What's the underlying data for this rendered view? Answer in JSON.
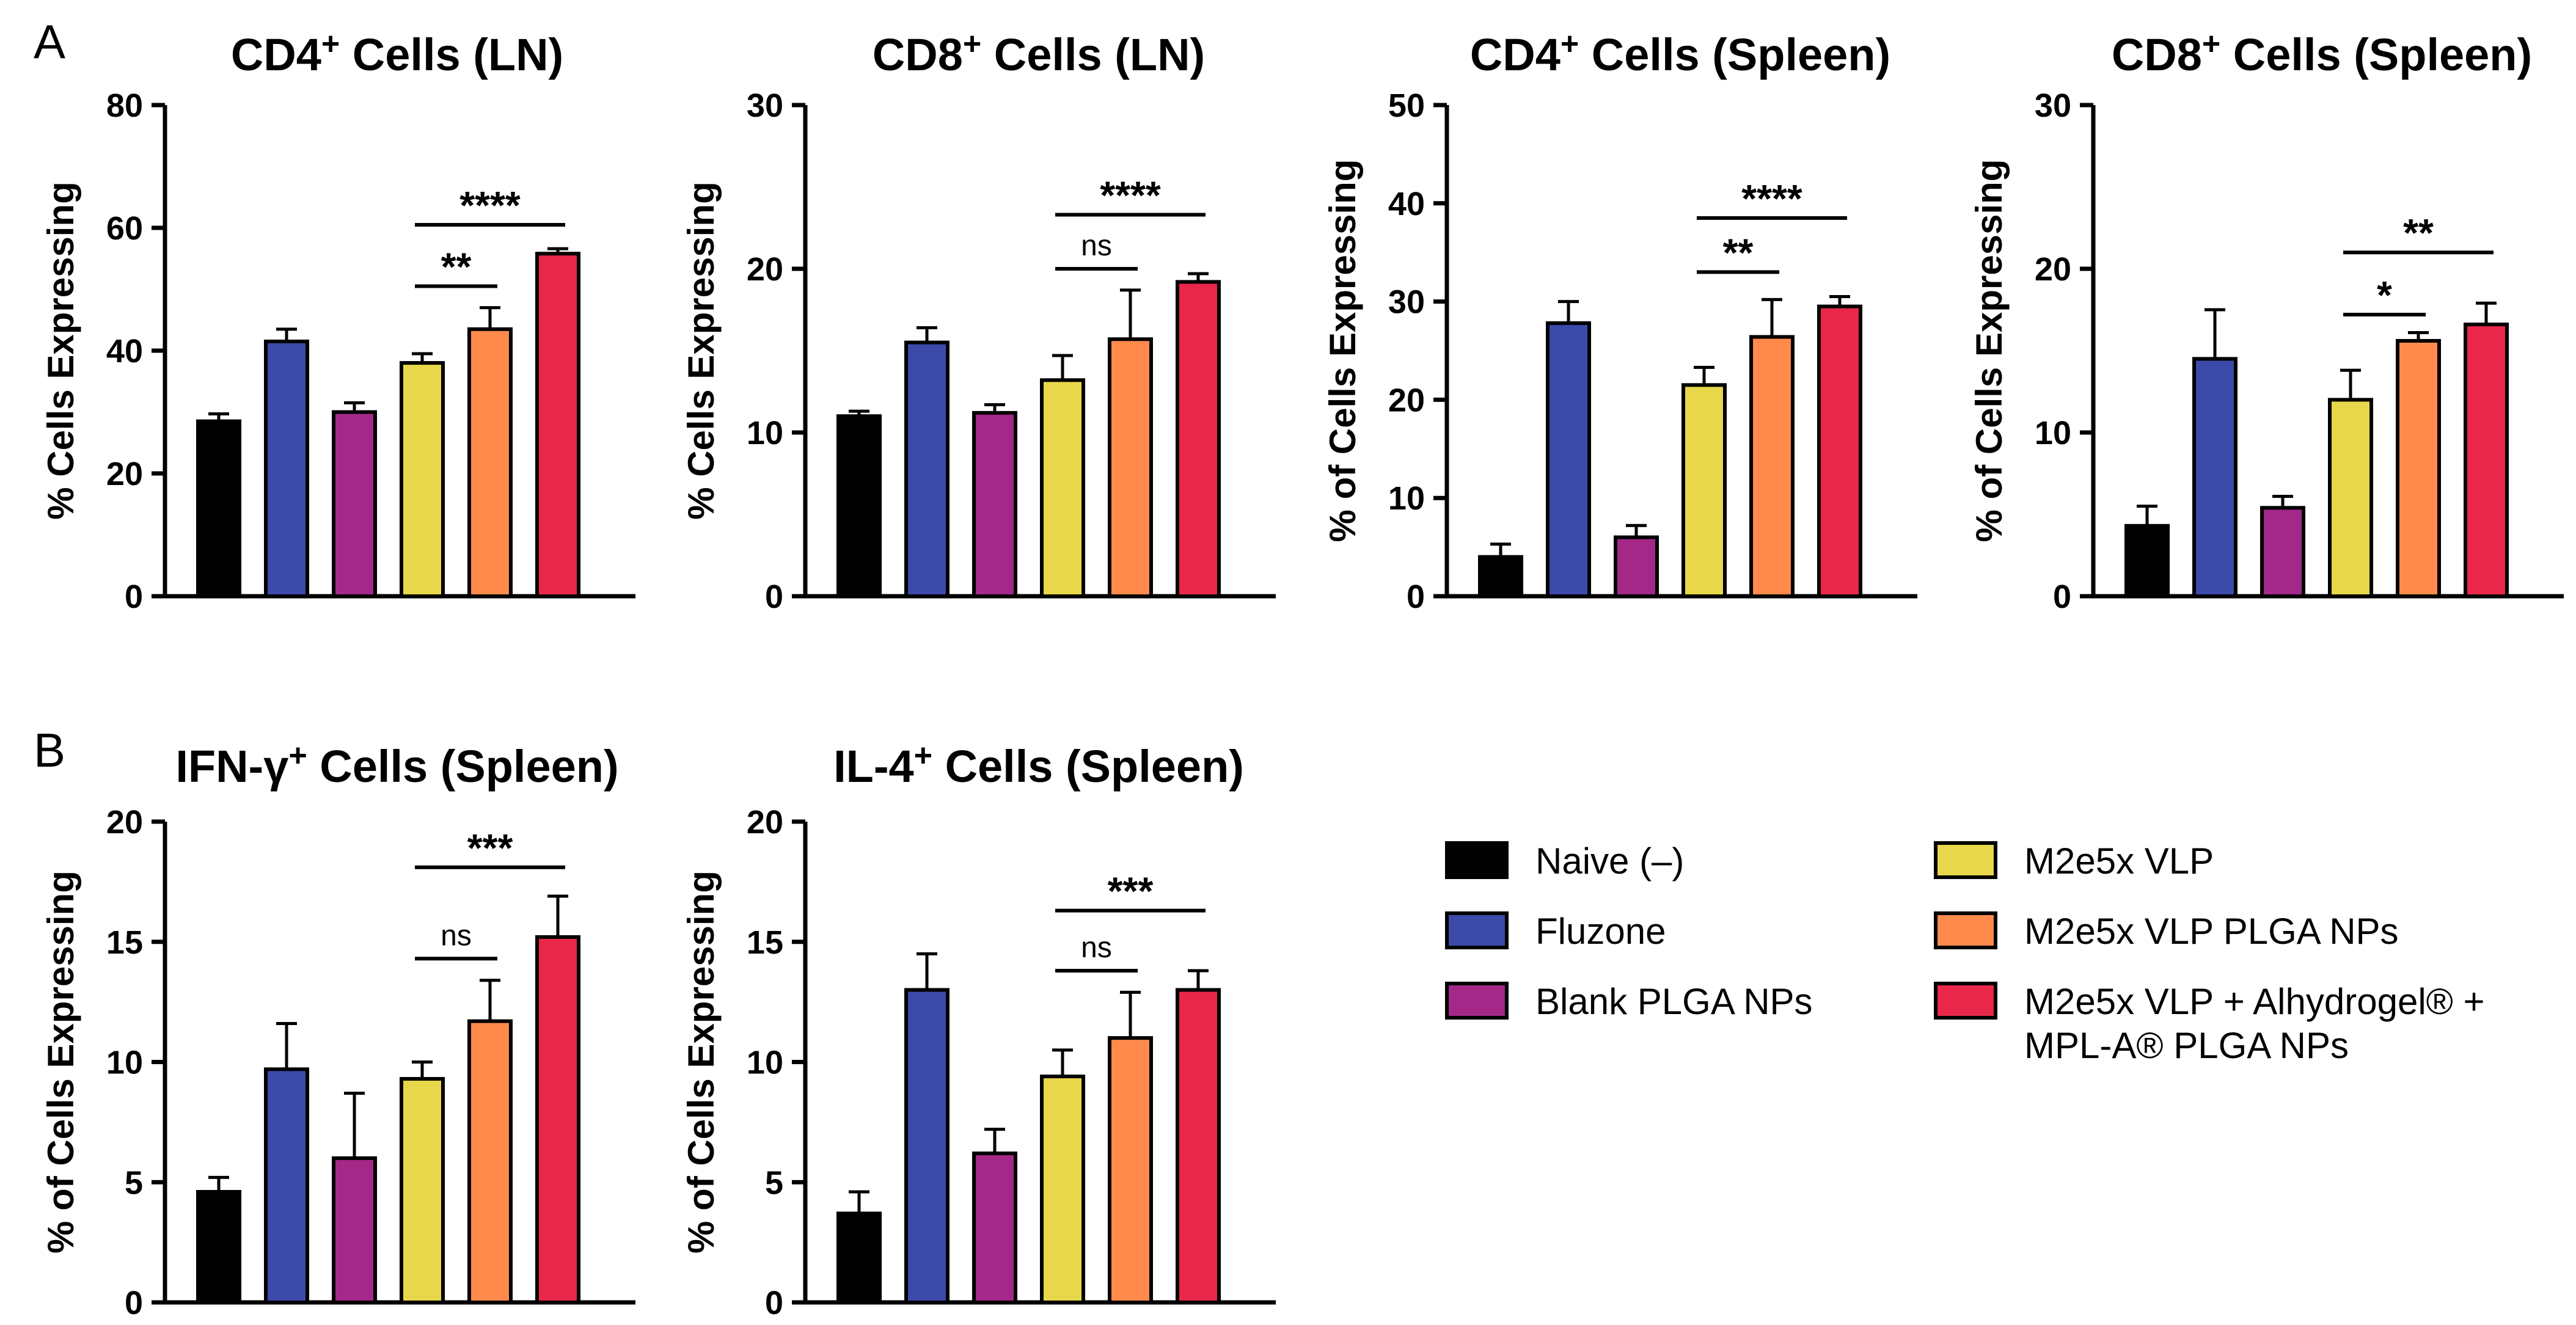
{
  "panel_labels": [
    "A",
    "B"
  ],
  "groups": [
    {
      "name": "Naive (–)",
      "color": "#000000"
    },
    {
      "name": "Fluzone",
      "color": "#3c4aaa"
    },
    {
      "name": "Blank PLGA NPs",
      "color": "#a32888"
    },
    {
      "name": "M2e5x VLP",
      "color": "#e8d74a"
    },
    {
      "name": "M2e5x VLP PLGA NPs",
      "color": "#ff8a4c"
    },
    {
      "name": "M2e5x VLP + Alhydrogel® + MPL-A® PLGA NPs",
      "color": "#e8274a"
    }
  ],
  "legend": [
    {
      "lines": [
        "Naive (–)"
      ]
    },
    {
      "lines": [
        "Fluzone"
      ]
    },
    {
      "lines": [
        "Blank PLGA NPs"
      ]
    },
    {
      "lines": [
        "M2e5x VLP"
      ]
    },
    {
      "lines": [
        "M2e5x VLP PLGA NPs"
      ]
    },
    {
      "lines": [
        "M2e5x VLP + Alhydrogel® +",
        "MPL-A® PLGA NPs"
      ]
    }
  ],
  "chart_data": [
    {
      "type": "bar",
      "panel": "A",
      "title": "CD4",
      "title_sup": "+",
      "title_rest": " Cells (LN)",
      "ylabel": "% Cells Expressing",
      "ylim": [
        0,
        80
      ],
      "yticks": [
        0,
        20,
        40,
        60,
        80
      ],
      "categories": [
        "Naive (–)",
        "Fluzone",
        "Blank PLGA NPs",
        "M2e5x VLP",
        "M2e5x VLP PLGA NPs",
        "M2e5x VLP + Alhydrogel® + MPL-A® PLGA NPs"
      ],
      "values": [
        28.5,
        41.5,
        30,
        38,
        43.5,
        55.8
      ],
      "errors": [
        1.2,
        2,
        1.5,
        1.5,
        3.5,
        0.8
      ],
      "significance": [
        {
          "from": 3,
          "to": 4,
          "label": "**",
          "y": 50.5
        },
        {
          "from": 3,
          "to": 5,
          "label": "****",
          "y": 60.5
        }
      ]
    },
    {
      "type": "bar",
      "panel": "A",
      "title": "CD8",
      "title_sup": "+",
      "title_rest": " Cells (LN)",
      "ylabel": "% Cells Expressing",
      "ylim": [
        0,
        30
      ],
      "yticks": [
        0,
        10,
        20,
        30
      ],
      "categories": [
        "Naive (–)",
        "Fluzone",
        "Blank PLGA NPs",
        "M2e5x VLP",
        "M2e5x VLP PLGA NPs",
        "M2e5x VLP + Alhydrogel® + MPL-A® PLGA NPs"
      ],
      "values": [
        11,
        15.5,
        11.2,
        13.2,
        15.7,
        19.2
      ],
      "errors": [
        0.3,
        0.9,
        0.5,
        1.5,
        3,
        0.5
      ],
      "significance": [
        {
          "from": 3,
          "to": 4,
          "label": "ns",
          "y": 20
        },
        {
          "from": 3,
          "to": 5,
          "label": "****",
          "y": 23.3
        }
      ]
    },
    {
      "type": "bar",
      "panel": "A",
      "title": "CD4",
      "title_sup": "+",
      "title_rest": " Cells (Spleen)",
      "ylabel": "% of Cells Expressing",
      "ylim": [
        0,
        50
      ],
      "yticks": [
        0,
        10,
        20,
        30,
        40,
        50
      ],
      "categories": [
        "Naive (–)",
        "Fluzone",
        "Blank PLGA NPs",
        "M2e5x VLP",
        "M2e5x VLP PLGA NPs",
        "M2e5x VLP + Alhydrogel® + MPL-A® PLGA NPs"
      ],
      "values": [
        4,
        27.8,
        6,
        21.5,
        26.4,
        29.5
      ],
      "errors": [
        1.3,
        2.2,
        1.2,
        1.8,
        3.8,
        1
      ],
      "significance": [
        {
          "from": 3,
          "to": 4,
          "label": "**",
          "y": 33
        },
        {
          "from": 3,
          "to": 5,
          "label": "****",
          "y": 38.5
        }
      ]
    },
    {
      "type": "bar",
      "panel": "A",
      "title": "CD8",
      "title_sup": "+",
      "title_rest": " Cells (Spleen)",
      "ylabel": "% of Cells Expressing",
      "ylim": [
        0,
        30
      ],
      "yticks": [
        0,
        10,
        20,
        30
      ],
      "categories": [
        "Naive (–)",
        "Fluzone",
        "Blank PLGA NPs",
        "M2e5x VLP",
        "M2e5x VLP PLGA NPs",
        "M2e5x VLP + Alhydrogel® + MPL-A® PLGA NPs"
      ],
      "values": [
        4.3,
        14.5,
        5.4,
        12,
        15.6,
        16.6
      ],
      "errors": [
        1.2,
        3,
        0.7,
        1.8,
        0.5,
        1.3
      ],
      "significance": [
        {
          "from": 3,
          "to": 4,
          "label": "*",
          "y": 17.2
        },
        {
          "from": 3,
          "to": 5,
          "label": "**",
          "y": 21
        }
      ]
    },
    {
      "type": "bar",
      "panel": "B",
      "title": "IFN-γ",
      "title_sup": "+",
      "title_rest": " Cells (Spleen)",
      "ylabel": "% of Cells Expressing",
      "ylim": [
        0,
        20
      ],
      "yticks": [
        0,
        5,
        10,
        15,
        20
      ],
      "categories": [
        "Naive (–)",
        "Fluzone",
        "Blank PLGA NPs",
        "M2e5x VLP",
        "M2e5x VLP PLGA NPs",
        "M2e5x VLP + Alhydrogel® + MPL-A® PLGA NPs"
      ],
      "values": [
        4.6,
        9.7,
        6,
        9.3,
        11.7,
        15.2
      ],
      "errors": [
        0.6,
        1.9,
        2.7,
        0.7,
        1.7,
        1.7
      ],
      "significance": [
        {
          "from": 3,
          "to": 4,
          "label": "ns",
          "y": 14.3
        },
        {
          "from": 3,
          "to": 5,
          "label": "***",
          "y": 18.1
        }
      ]
    },
    {
      "type": "bar",
      "panel": "B",
      "title": "IL-4",
      "title_sup": "+",
      "title_rest": " Cells (Spleen)",
      "ylabel": "% of Cells Expressing",
      "ylim": [
        0,
        20
      ],
      "yticks": [
        0,
        5,
        10,
        15,
        20
      ],
      "categories": [
        "Naive (–)",
        "Fluzone",
        "Blank PLGA NPs",
        "M2e5x VLP",
        "M2e5x VLP PLGA NPs",
        "M2e5x VLP + Alhydrogel® + MPL-A® PLGA NPs"
      ],
      "values": [
        3.7,
        13,
        6.2,
        9.4,
        11,
        13
      ],
      "errors": [
        0.9,
        1.5,
        1,
        1.1,
        1.9,
        0.8
      ],
      "significance": [
        {
          "from": 3,
          "to": 4,
          "label": "ns",
          "y": 13.8
        },
        {
          "from": 3,
          "to": 5,
          "label": "***",
          "y": 16.3
        }
      ]
    }
  ]
}
